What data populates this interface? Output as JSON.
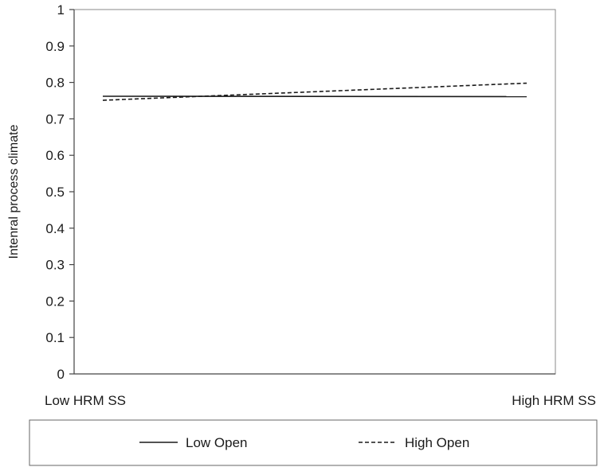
{
  "chart_data": {
    "type": "line",
    "categories": [
      "Low HRM SS",
      "High HRM SS"
    ],
    "series": [
      {
        "name": "Low Open",
        "values": [
          0.762,
          0.761
        ],
        "style": "solid"
      },
      {
        "name": "High Open",
        "values": [
          0.751,
          0.798
        ],
        "style": "dashed"
      }
    ],
    "ylabel": "Intenral process climate",
    "ylim": [
      0,
      1
    ],
    "yticks": [
      "0",
      "0.1",
      "0.2",
      "0.3",
      "0.4",
      "0.5",
      "0.6",
      "0.7",
      "0.8",
      "0.9",
      "1"
    ],
    "grid": false,
    "legend_position": "bottom",
    "colors": {
      "line": "#1a1a1a",
      "axis": "#888888",
      "legend_border": "#666666"
    }
  }
}
